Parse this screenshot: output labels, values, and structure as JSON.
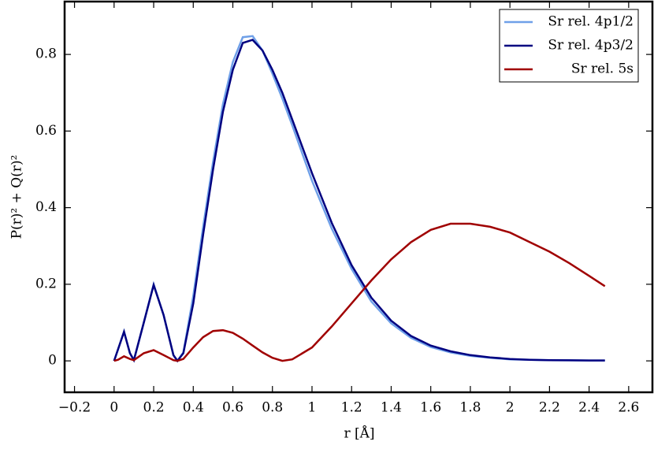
{
  "chart_data": {
    "type": "line",
    "x_label": "r [Å]",
    "y_label": "P(r)² + Q(r)²",
    "x": [
      0,
      0.02,
      0.05,
      0.08,
      0.1,
      0.15,
      0.2,
      0.25,
      0.3,
      0.32,
      0.35,
      0.4,
      0.45,
      0.5,
      0.55,
      0.6,
      0.65,
      0.7,
      0.75,
      0.8,
      0.85,
      0.9,
      1.0,
      1.1,
      1.2,
      1.3,
      1.4,
      1.5,
      1.6,
      1.7,
      1.8,
      1.9,
      2.0,
      2.1,
      2.2,
      2.3,
      2.4,
      2.48
    ],
    "series": [
      {
        "name": "Sr rel. 4p1/2",
        "color": "#6fa0e8",
        "values": [
          0,
          0.03,
          0.077,
          0.02,
          0.002,
          0.1,
          0.2,
          0.12,
          0.015,
          0,
          0.022,
          0.17,
          0.35,
          0.52,
          0.67,
          0.78,
          0.845,
          0.848,
          0.81,
          0.75,
          0.685,
          0.615,
          0.47,
          0.345,
          0.24,
          0.155,
          0.098,
          0.06,
          0.036,
          0.022,
          0.013,
          0.008,
          0.004,
          0.003,
          0.002,
          0.0015,
          0.001,
          0.001
        ]
      },
      {
        "name": "Sr rel. 4p3/2",
        "color": "#000080",
        "values": [
          0,
          0.03,
          0.076,
          0.02,
          0.002,
          0.1,
          0.198,
          0.12,
          0.015,
          0,
          0.02,
          0.15,
          0.33,
          0.5,
          0.65,
          0.76,
          0.83,
          0.838,
          0.81,
          0.76,
          0.7,
          0.63,
          0.49,
          0.36,
          0.25,
          0.165,
          0.105,
          0.065,
          0.04,
          0.025,
          0.015,
          0.009,
          0.005,
          0.003,
          0.002,
          0.0015,
          0.001,
          0.001
        ]
      },
      {
        "name": "Sr rel. 5s",
        "color": "#a00000",
        "values": [
          0,
          0.003,
          0.012,
          0.005,
          0.002,
          0.02,
          0.028,
          0.015,
          0.002,
          0,
          0.005,
          0.035,
          0.062,
          0.078,
          0.08,
          0.073,
          0.058,
          0.04,
          0.022,
          0.008,
          0,
          0.004,
          0.035,
          0.09,
          0.15,
          0.21,
          0.265,
          0.31,
          0.342,
          0.358,
          0.358,
          0.35,
          0.335,
          0.31,
          0.285,
          0.255,
          0.222,
          0.195
        ]
      }
    ],
    "xlim": [
      -0.25,
      2.72
    ],
    "ylim": [
      -0.082,
      0.938
    ],
    "xticks": [
      {
        "value": -0.2,
        "label": "−0.2"
      },
      0,
      0.2,
      0.4,
      0.6,
      0.8,
      1,
      1.2,
      1.4,
      1.6,
      1.8,
      2,
      2.2,
      2.4,
      2.6
    ],
    "yticks": [
      0,
      0.2,
      0.4,
      0.6,
      0.8
    ],
    "legend": "upper-right"
  }
}
